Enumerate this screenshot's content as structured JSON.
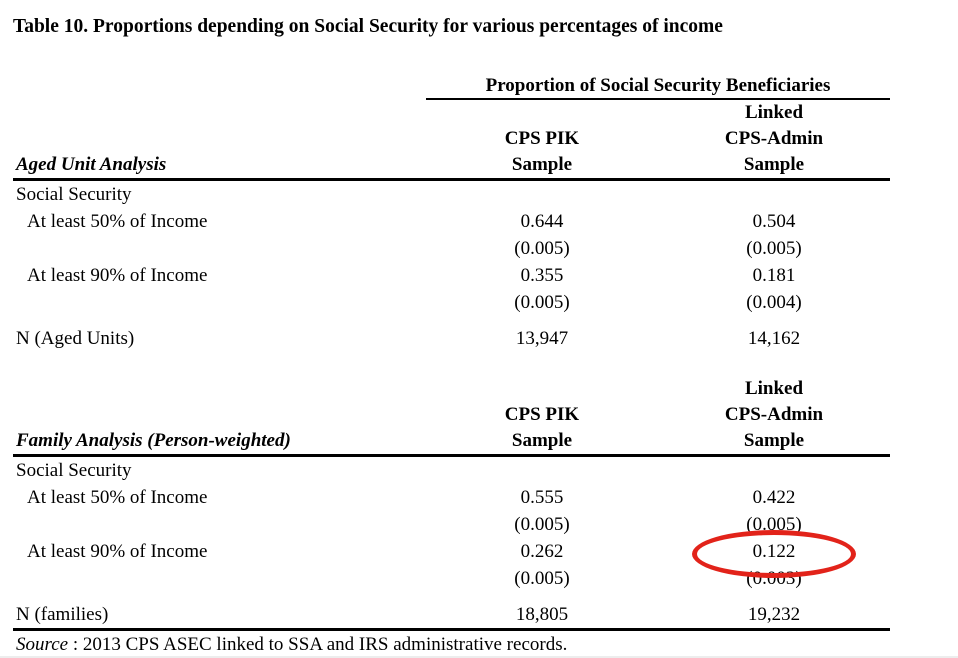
{
  "page": {
    "title": "Table 10. Proportions depending on Social Security for various percentages of income",
    "background_color": "#ffffff",
    "text_color": "#000000"
  },
  "table": {
    "span_header": "Proportion of Social Security Beneficiaries",
    "panels": [
      {
        "section_label": "Aged Unit Analysis",
        "col_headers": {
          "col1": [
            "CPS PIK",
            "Sample"
          ],
          "col2": [
            "Linked",
            "CPS-Admin",
            "Sample"
          ]
        },
        "rows": [
          {
            "label": "Social Security",
            "v1": "",
            "v2": ""
          },
          {
            "label": "At least 50% of Income",
            "v1": "0.644",
            "v2": "0.504"
          },
          {
            "label": "",
            "v1": "(0.005)",
            "v2": "(0.005)"
          },
          {
            "label": "At least 90% of Income",
            "v1": "0.355",
            "v2": "0.181"
          },
          {
            "label": "",
            "v1": "(0.005)",
            "v2": "(0.004)"
          },
          {
            "label": "N (Aged Units)",
            "v1": "13,947",
            "v2": "14,162"
          }
        ]
      },
      {
        "section_label": "Family Analysis (Person-weighted)",
        "col_headers": {
          "col1": [
            "CPS PIK",
            "Sample"
          ],
          "col2": [
            "Linked",
            "CPS-Admin",
            "Sample"
          ]
        },
        "rows": [
          {
            "label": "Social Security",
            "v1": "",
            "v2": ""
          },
          {
            "label": "At least 50% of Income",
            "v1": "0.555",
            "v2": "0.422"
          },
          {
            "label": "",
            "v1": "(0.005)",
            "v2": "(0.005)"
          },
          {
            "label": "At least 90% of Income",
            "v1": "0.262",
            "v2": "0.122"
          },
          {
            "label": "",
            "v1": "(0.005)",
            "v2": "(0.003)"
          },
          {
            "label": "N (families)",
            "v1": "18,805",
            "v2": "19,232"
          }
        ]
      }
    ]
  },
  "annotation": {
    "shape": "ellipse",
    "color": "#e2231a",
    "highlighted_value": "0.122"
  },
  "source": {
    "label": "Source",
    "text": " : 2013 CPS ASEC linked to SSA and IRS administrative records."
  }
}
